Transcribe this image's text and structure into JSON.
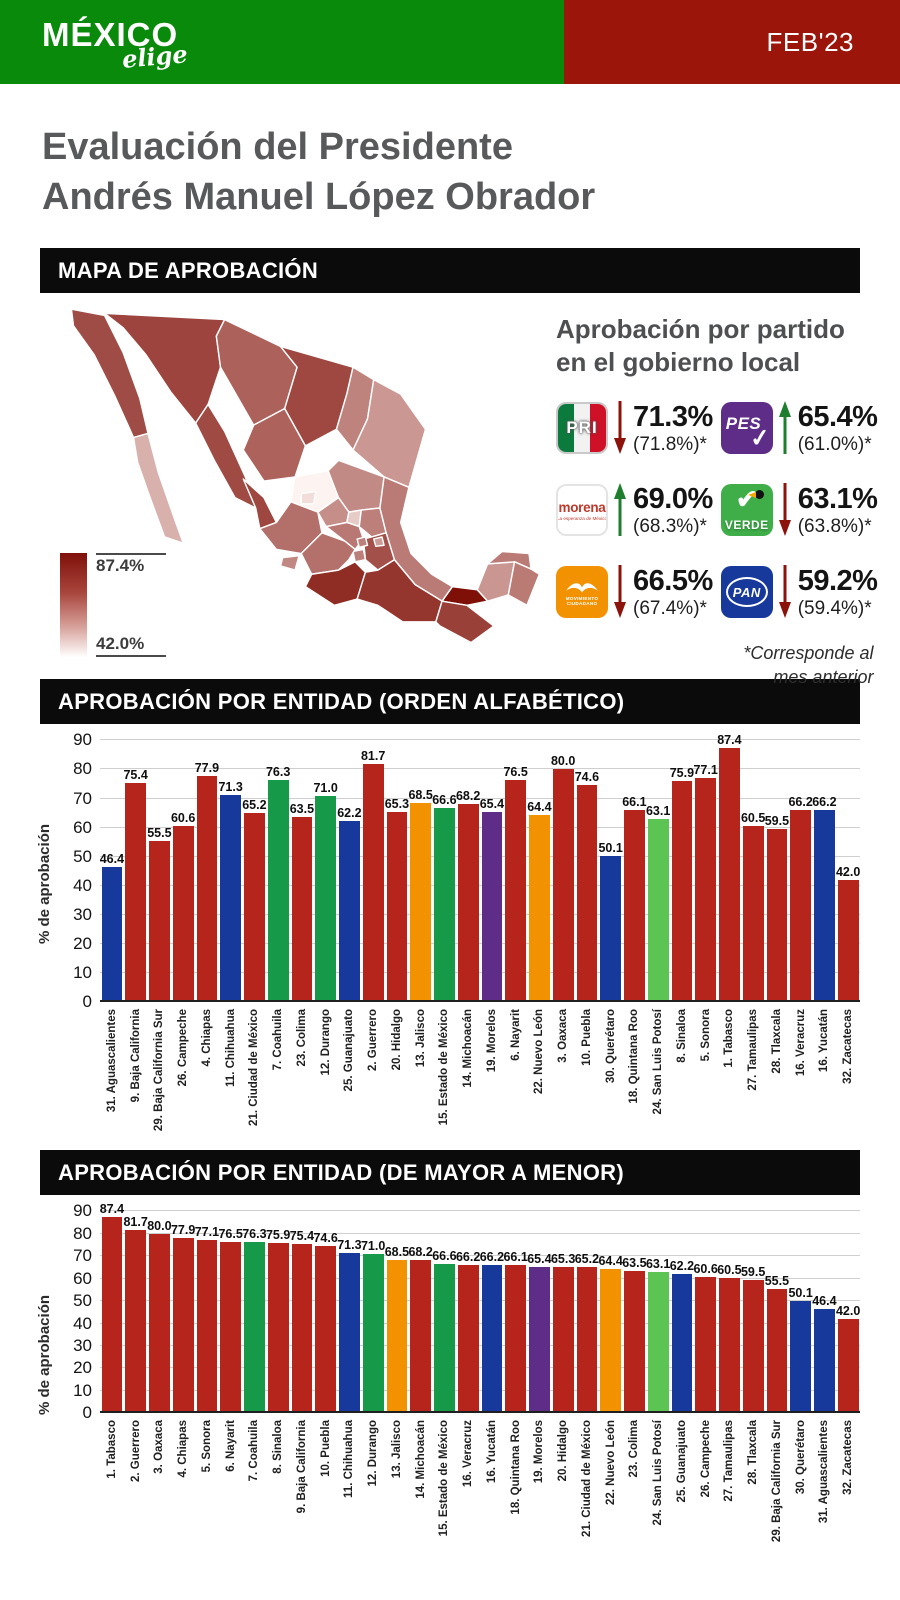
{
  "header": {
    "brand_main": "MÉXICO",
    "brand_sub": "elige",
    "period": "FEB'23",
    "green": "#0a8a0a",
    "red": "#9b150a"
  },
  "title": {
    "line1": "Evaluación del Presidente",
    "line2": "Andrés Manuel López Obrador"
  },
  "sections": {
    "map_banner": "MAPA DE APROBACIÓN",
    "alpha_banner": "APROBACIÓN POR ENTIDAD (ORDEN ALFABÉTICO)",
    "sorted_banner": "APROBACIÓN POR ENTIDAD (DE MAYOR A MENOR)"
  },
  "map": {
    "legend_max": "87.4%",
    "legend_min": "42.0%",
    "scale_min": 42.0,
    "scale_max": 87.4,
    "states": [
      {
        "id": "baja-california",
        "value": 75.4
      },
      {
        "id": "baja-california-sur",
        "value": 55.5
      },
      {
        "id": "sonora",
        "value": 77.1
      },
      {
        "id": "chihuahua",
        "value": 71.3
      },
      {
        "id": "coahuila",
        "value": 76.3
      },
      {
        "id": "nuevo-leon",
        "value": 64.4
      },
      {
        "id": "tamaulipas",
        "value": 60.5
      },
      {
        "id": "sinaloa",
        "value": 75.9
      },
      {
        "id": "durango",
        "value": 71.0
      },
      {
        "id": "zacatecas",
        "value": 42.0
      },
      {
        "id": "san-luis-potosi",
        "value": 63.1
      },
      {
        "id": "nayarit",
        "value": 76.5
      },
      {
        "id": "jalisco",
        "value": 68.5
      },
      {
        "id": "aguascalientes",
        "value": 46.4
      },
      {
        "id": "guanajuato",
        "value": 62.2
      },
      {
        "id": "queretaro",
        "value": 50.1
      },
      {
        "id": "hidalgo",
        "value": 65.3
      },
      {
        "id": "estado-de-mexico",
        "value": 66.6
      },
      {
        "id": "cdmx",
        "value": 65.2
      },
      {
        "id": "tlaxcala",
        "value": 59.5
      },
      {
        "id": "morelos",
        "value": 65.4
      },
      {
        "id": "puebla",
        "value": 74.6
      },
      {
        "id": "colima",
        "value": 63.5
      },
      {
        "id": "michoacan",
        "value": 68.2
      },
      {
        "id": "guerrero",
        "value": 81.7
      },
      {
        "id": "oaxaca",
        "value": 80.0
      },
      {
        "id": "veracruz",
        "value": 66.2
      },
      {
        "id": "tabasco",
        "value": 87.4
      },
      {
        "id": "chiapas",
        "value": 77.9
      },
      {
        "id": "campeche",
        "value": 60.6
      },
      {
        "id": "yucatan",
        "value": 66.2
      },
      {
        "id": "quintana-roo",
        "value": 66.1
      }
    ]
  },
  "party_panel": {
    "heading_line1": "Aprobación por partido",
    "heading_line2": "en el gobierno local",
    "footnote_line1": "*Corresponde al",
    "footnote_line2": "mes anterior",
    "parties": [
      {
        "id": "pri",
        "name": "PRI",
        "value": "71.3%",
        "previous": "(71.8%)*",
        "trend": "down"
      },
      {
        "id": "pes",
        "name": "PES",
        "value": "65.4%",
        "previous": "(61.0%)*",
        "trend": "up"
      },
      {
        "id": "morena",
        "name": "morena",
        "tagline": "La esperanza de México",
        "value": "69.0%",
        "previous": "(68.3%)*",
        "trend": "up"
      },
      {
        "id": "verde",
        "name": "VERDE",
        "value": "63.1%",
        "previous": "(63.8%)*",
        "trend": "down"
      },
      {
        "id": "mc",
        "name": "MOVIMIENTO CIUDADANO",
        "value": "66.5%",
        "previous": "(67.4%)*",
        "trend": "down"
      },
      {
        "id": "pan",
        "name": "PAN",
        "value": "59.2%",
        "previous": "(59.4%)*",
        "trend": "down"
      }
    ]
  },
  "party_colors": {
    "morena": "#b5251c",
    "pan": "#16399b",
    "pri": "#169a4a",
    "mc": "#f39200",
    "pes": "#5d2d87",
    "pvem": "#5cc453"
  },
  "chart_data": [
    {
      "type": "bar",
      "title": "APROBACIÓN POR ENTIDAD (ORDEN ALFABÉTICO)",
      "xlabel": "",
      "ylabel": "% de aprobación",
      "ylim": [
        0,
        90
      ],
      "ytick_step": 10,
      "grid": true,
      "bars": [
        {
          "label": "31. Aguascalientes",
          "value": 46.4,
          "party": "pan"
        },
        {
          "label": "9. Baja California",
          "value": 75.4,
          "party": "morena"
        },
        {
          "label": "29. Baja California Sur",
          "value": 55.5,
          "party": "morena"
        },
        {
          "label": "26. Campeche",
          "value": 60.6,
          "party": "morena"
        },
        {
          "label": "4. Chiapas",
          "value": 77.9,
          "party": "morena"
        },
        {
          "label": "11. Chihuahua",
          "value": 71.3,
          "party": "pan"
        },
        {
          "label": "21. Ciudad de México",
          "value": 65.2,
          "party": "morena"
        },
        {
          "label": "7. Coahuila",
          "value": 76.3,
          "party": "pri"
        },
        {
          "label": "23. Colima",
          "value": 63.5,
          "party": "morena"
        },
        {
          "label": "12. Durango",
          "value": 71.0,
          "party": "pri"
        },
        {
          "label": "25. Guanajuato",
          "value": 62.2,
          "party": "pan"
        },
        {
          "label": "2. Guerrero",
          "value": 81.7,
          "party": "morena"
        },
        {
          "label": "20. Hidalgo",
          "value": 65.3,
          "party": "morena"
        },
        {
          "label": "13. Jalisco",
          "value": 68.5,
          "party": "mc"
        },
        {
          "label": "15. Estado de México",
          "value": 66.6,
          "party": "pri"
        },
        {
          "label": "14. Michoacán",
          "value": 68.2,
          "party": "morena"
        },
        {
          "label": "19. Morelos",
          "value": 65.4,
          "party": "pes"
        },
        {
          "label": "6. Nayarit",
          "value": 76.5,
          "party": "morena"
        },
        {
          "label": "22. Nuevo León",
          "value": 64.4,
          "party": "mc"
        },
        {
          "label": "3. Oaxaca",
          "value": 80.0,
          "party": "morena"
        },
        {
          "label": "10. Puebla",
          "value": 74.6,
          "party": "morena"
        },
        {
          "label": "30. Querétaro",
          "value": 50.1,
          "party": "pan"
        },
        {
          "label": "18. Quintana Roo",
          "value": 66.1,
          "party": "morena"
        },
        {
          "label": "24. San Luis Potosí",
          "value": 63.1,
          "party": "pvem"
        },
        {
          "label": "8. Sinaloa",
          "value": 75.9,
          "party": "morena"
        },
        {
          "label": "5. Sonora",
          "value": 77.1,
          "party": "morena"
        },
        {
          "label": "1. Tabasco",
          "value": 87.4,
          "party": "morena"
        },
        {
          "label": "27. Tamaulipas",
          "value": 60.5,
          "party": "morena"
        },
        {
          "label": "28. Tlaxcala",
          "value": 59.5,
          "party": "morena"
        },
        {
          "label": "16. Veracruz",
          "value": 66.2,
          "party": "morena"
        },
        {
          "label": "16. Yucatán",
          "value": 66.2,
          "party": "pan"
        },
        {
          "label": "32. Zacatecas",
          "value": 42.0,
          "party": "morena"
        }
      ]
    },
    {
      "type": "bar",
      "title": "APROBACIÓN POR ENTIDAD (DE MAYOR A MENOR)",
      "xlabel": "",
      "ylabel": "% de aprobación",
      "ylim": [
        0,
        90
      ],
      "ytick_step": 10,
      "grid": true,
      "bars": [
        {
          "label": "1. Tabasco",
          "value": 87.4,
          "party": "morena"
        },
        {
          "label": "2. Guerrero",
          "value": 81.7,
          "party": "morena"
        },
        {
          "label": "3. Oaxaca",
          "value": 80.0,
          "party": "morena"
        },
        {
          "label": "4. Chiapas",
          "value": 77.9,
          "party": "morena"
        },
        {
          "label": "5. Sonora",
          "value": 77.1,
          "party": "morena"
        },
        {
          "label": "6. Nayarit",
          "value": 76.5,
          "party": "morena"
        },
        {
          "label": "7. Coahuila",
          "value": 76.3,
          "party": "pri"
        },
        {
          "label": "8. Sinaloa",
          "value": 75.9,
          "party": "morena"
        },
        {
          "label": "9. Baja California",
          "value": 75.4,
          "party": "morena"
        },
        {
          "label": "10. Puebla",
          "value": 74.6,
          "party": "morena"
        },
        {
          "label": "11. Chihuahua",
          "value": 71.3,
          "party": "pan"
        },
        {
          "label": "12. Durango",
          "value": 71.0,
          "party": "pri"
        },
        {
          "label": "13. Jalisco",
          "value": 68.5,
          "party": "mc"
        },
        {
          "label": "14. Michoacán",
          "value": 68.2,
          "party": "morena"
        },
        {
          "label": "15. Estado de México",
          "value": 66.6,
          "party": "pri"
        },
        {
          "label": "16. Veracruz",
          "value": 66.2,
          "party": "morena"
        },
        {
          "label": "16. Yucatán",
          "value": 66.2,
          "party": "pan"
        },
        {
          "label": "18. Quintana Roo",
          "value": 66.1,
          "party": "morena"
        },
        {
          "label": "19. Morelos",
          "value": 65.4,
          "party": "pes"
        },
        {
          "label": "20. Hidalgo",
          "value": 65.3,
          "party": "morena"
        },
        {
          "label": "21. Ciudad de México",
          "value": 65.2,
          "party": "morena"
        },
        {
          "label": "22. Nuevo León",
          "value": 64.4,
          "party": "mc"
        },
        {
          "label": "23. Colima",
          "value": 63.5,
          "party": "morena"
        },
        {
          "label": "24. San Luis Potosí",
          "value": 63.1,
          "party": "pvem"
        },
        {
          "label": "25. Guanajuato",
          "value": 62.2,
          "party": "pan"
        },
        {
          "label": "26. Campeche",
          "value": 60.6,
          "party": "morena"
        },
        {
          "label": "27. Tamaulipas",
          "value": 60.5,
          "party": "morena"
        },
        {
          "label": "28. Tlaxcala",
          "value": 59.5,
          "party": "morena"
        },
        {
          "label": "29. Baja California Sur",
          "value": 55.5,
          "party": "morena"
        },
        {
          "label": "30. Querétaro",
          "value": 50.1,
          "party": "pan"
        },
        {
          "label": "31. Aguascalientes",
          "value": 46.4,
          "party": "pan"
        },
        {
          "label": "32. Zacatecas",
          "value": 42.0,
          "party": "morena"
        }
      ]
    }
  ]
}
